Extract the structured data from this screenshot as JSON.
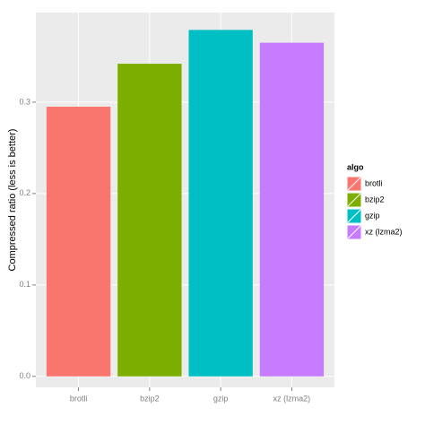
{
  "chart_data": {
    "type": "bar",
    "y_label": "Compressed ratio (less is better)",
    "categories": [
      "brotli",
      "bzip2",
      "gzip",
      "xz (lzma2)"
    ],
    "values": [
      0.295,
      0.342,
      0.379,
      0.365
    ],
    "colors": [
      "#f8766d",
      "#7cae00",
      "#00bfc4",
      "#c77cff"
    ],
    "ylim": [
      -0.012,
      0.398
    ],
    "yticks": [
      {
        "value": 0,
        "label": "0.0"
      },
      0.1,
      0.2,
      0.3
    ],
    "grid": true,
    "legend_title": "algo",
    "legend": "right"
  }
}
